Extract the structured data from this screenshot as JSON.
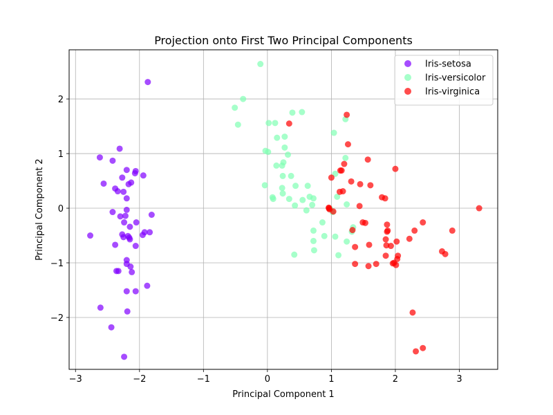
{
  "chart_data": {
    "type": "scatter",
    "title": "Projection onto First Two Principal Components",
    "xlabel": "Principal Component 1",
    "ylabel": "Principal Component 2",
    "xlim": [
      -3.1,
      3.6
    ],
    "ylim": [
      -2.95,
      2.9
    ],
    "xticks": [
      -3,
      -2,
      -1,
      0,
      1,
      2,
      3
    ],
    "yticks": [
      -2,
      -1,
      0,
      1,
      2
    ],
    "grid": true,
    "legend_position": "top-right",
    "series": [
      {
        "name": "Iris-setosa",
        "color": "#8000ff",
        "points": [
          [
            -2.27,
            0.56
          ],
          [
            -2.31,
            1.09
          ],
          [
            -2.62,
            0.93
          ],
          [
            -2.42,
            0.87
          ],
          [
            -2.56,
            0.45
          ],
          [
            -2.38,
            0.36
          ],
          [
            -2.34,
            0.31
          ],
          [
            -2.25,
            0.3
          ],
          [
            -2.2,
            0.7
          ],
          [
            -2.07,
            0.64
          ],
          [
            -2.06,
            0.68
          ],
          [
            -2.13,
            0.47
          ],
          [
            -2.17,
            0.44
          ],
          [
            -1.94,
            0.6
          ],
          [
            -2.2,
            0.18
          ],
          [
            -2.42,
            -0.07
          ],
          [
            -2.3,
            -0.15
          ],
          [
            -2.22,
            -0.14
          ],
          [
            -2.2,
            -0.03
          ],
          [
            -2.15,
            -0.34
          ],
          [
            -2.05,
            -0.26
          ],
          [
            -1.81,
            -0.12
          ],
          [
            -2.24,
            -0.26
          ],
          [
            -2.77,
            -0.5
          ],
          [
            -2.27,
            -0.48
          ],
          [
            -2.25,
            -0.53
          ],
          [
            -2.18,
            -0.51
          ],
          [
            -2.16,
            -0.54
          ],
          [
            -2.15,
            -0.57
          ],
          [
            -1.92,
            -0.44
          ],
          [
            -1.84,
            -0.44
          ],
          [
            -2.38,
            -0.67
          ],
          [
            -1.95,
            -0.49
          ],
          [
            -2.06,
            -0.69
          ],
          [
            -2.2,
            -0.95
          ],
          [
            -2.2,
            -1.02
          ],
          [
            -2.14,
            -1.07
          ],
          [
            -2.36,
            -1.15
          ],
          [
            -2.33,
            -1.15
          ],
          [
            -2.12,
            -1.17
          ],
          [
            -1.88,
            -1.42
          ],
          [
            -2.06,
            -1.52
          ],
          [
            -2.2,
            -1.52
          ],
          [
            -2.61,
            -1.82
          ],
          [
            -2.19,
            -1.89
          ],
          [
            -2.44,
            -2.18
          ],
          [
            -2.24,
            -2.72
          ],
          [
            -1.87,
            2.31
          ]
        ]
      },
      {
        "name": "Iris-versicolor",
        "color": "#80ffb4",
        "points": [
          [
            -0.11,
            2.64
          ],
          [
            -0.38,
            2.0
          ],
          [
            -0.51,
            1.84
          ],
          [
            -0.46,
            1.53
          ],
          [
            0.02,
            1.56
          ],
          [
            0.12,
            1.56
          ],
          [
            0.54,
            1.76
          ],
          [
            0.39,
            1.75
          ],
          [
            1.04,
            1.38
          ],
          [
            1.22,
            1.63
          ],
          [
            0.27,
            1.31
          ],
          [
            0.15,
            1.29
          ],
          [
            0.27,
            1.11
          ],
          [
            0.32,
            0.98
          ],
          [
            -0.03,
            1.05
          ],
          [
            0.01,
            1.03
          ],
          [
            0.25,
            0.84
          ],
          [
            0.23,
            0.78
          ],
          [
            0.14,
            0.78
          ],
          [
            1.22,
            0.92
          ],
          [
            1.06,
            0.63
          ],
          [
            0.24,
            0.59
          ],
          [
            0.37,
            0.59
          ],
          [
            -0.04,
            0.42
          ],
          [
            0.44,
            0.41
          ],
          [
            0.63,
            0.41
          ],
          [
            0.23,
            0.37
          ],
          [
            0.24,
            0.27
          ],
          [
            0.66,
            0.21
          ],
          [
            0.08,
            0.2
          ],
          [
            0.09,
            0.17
          ],
          [
            0.34,
            0.17
          ],
          [
            0.55,
            0.15
          ],
          [
            0.72,
            0.18
          ],
          [
            1.09,
            0.21
          ],
          [
            0.7,
            0.06
          ],
          [
            1.24,
            0.07
          ],
          [
            0.43,
            0.05
          ],
          [
            0.61,
            -0.04
          ],
          [
            0.98,
            -0.01
          ],
          [
            1.02,
            -0.07
          ],
          [
            0.86,
            -0.26
          ],
          [
            1.34,
            -0.35
          ],
          [
            1.32,
            -0.43
          ],
          [
            0.72,
            -0.41
          ],
          [
            1.06,
            -0.52
          ],
          [
            0.89,
            -0.51
          ],
          [
            0.72,
            -0.6
          ],
          [
            1.24,
            -0.61
          ],
          [
            0.73,
            -0.77
          ],
          [
            0.42,
            -0.85
          ],
          [
            1.11,
            -0.86
          ]
        ]
      },
      {
        "name": "Iris-virginica",
        "color": "#ff0000",
        "points": [
          [
            1.24,
            1.71
          ],
          [
            0.34,
            1.55
          ],
          [
            1.26,
            1.17
          ],
          [
            1.57,
            0.89
          ],
          [
            2.0,
            0.72
          ],
          [
            1.2,
            0.81
          ],
          [
            1.14,
            0.69
          ],
          [
            1.16,
            0.69
          ],
          [
            1.0,
            0.56
          ],
          [
            1.31,
            0.49
          ],
          [
            1.45,
            0.44
          ],
          [
            1.61,
            0.42
          ],
          [
            1.13,
            0.3
          ],
          [
            1.18,
            0.31
          ],
          [
            1.79,
            0.2
          ],
          [
            1.84,
            0.18
          ],
          [
            0.96,
            0.01
          ],
          [
            0.97,
            -0.02
          ],
          [
            0.96,
            0.0
          ],
          [
            1.03,
            -0.06
          ],
          [
            1.44,
            0.04
          ],
          [
            3.31,
            0.0
          ],
          [
            1.49,
            -0.26
          ],
          [
            1.53,
            -0.27
          ],
          [
            2.43,
            -0.26
          ],
          [
            1.87,
            -0.3
          ],
          [
            1.33,
            -0.4
          ],
          [
            2.3,
            -0.41
          ],
          [
            2.89,
            -0.41
          ],
          [
            1.88,
            -0.41
          ],
          [
            1.87,
            -0.43
          ],
          [
            1.85,
            -0.57
          ],
          [
            2.02,
            -0.61
          ],
          [
            2.22,
            -0.56
          ],
          [
            1.59,
            -0.67
          ],
          [
            1.37,
            -0.71
          ],
          [
            1.86,
            -0.68
          ],
          [
            1.93,
            -0.69
          ],
          [
            2.73,
            -0.79
          ],
          [
            2.78,
            -0.84
          ],
          [
            1.85,
            -0.87
          ],
          [
            2.04,
            -0.87
          ],
          [
            2.03,
            -0.93
          ],
          [
            1.98,
            -1.0
          ],
          [
            2.01,
            -1.04
          ],
          [
            1.96,
            -1.01
          ],
          [
            1.7,
            -1.02
          ],
          [
            1.37,
            -1.02
          ],
          [
            1.58,
            -1.06
          ],
          [
            2.27,
            -1.91
          ],
          [
            2.32,
            -2.62
          ],
          [
            2.43,
            -2.56
          ]
        ]
      }
    ]
  }
}
